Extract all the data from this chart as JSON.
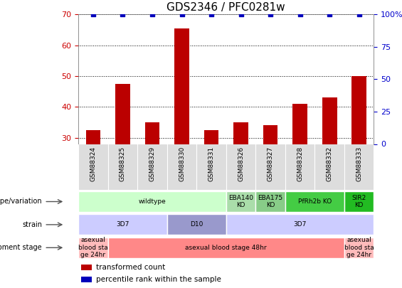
{
  "title": "GDS2346 / PFC0281w",
  "samples": [
    "GSM88324",
    "GSM88325",
    "GSM88329",
    "GSM88330",
    "GSM88331",
    "GSM88326",
    "GSM88327",
    "GSM88328",
    "GSM88332",
    "GSM88333"
  ],
  "bar_values": [
    32.5,
    47.5,
    35.0,
    65.5,
    32.5,
    35.0,
    34.0,
    41.0,
    43.0,
    50.0
  ],
  "dot_values_right": [
    100,
    100,
    100,
    100,
    100,
    100,
    100,
    100,
    100,
    100
  ],
  "ylim_left": [
    28,
    70
  ],
  "yticks_left": [
    30,
    40,
    50,
    60,
    70
  ],
  "ylim_right": [
    0,
    100
  ],
  "yticks_right": [
    0,
    25,
    50,
    75,
    100
  ],
  "bar_color": "#bb0000",
  "dot_color": "#0000bb",
  "tick_color_left": "#cc0000",
  "tick_color_right": "#0000cc",
  "genotype_segments": [
    {
      "text": "wildtype",
      "start": 0,
      "end": 5,
      "color": "#ccffcc"
    },
    {
      "text": "EBA140\nKO",
      "start": 5,
      "end": 6,
      "color": "#aaddaa"
    },
    {
      "text": "EBA175\nKO",
      "start": 6,
      "end": 7,
      "color": "#88cc88"
    },
    {
      "text": "PfRh2b KO",
      "start": 7,
      "end": 9,
      "color": "#44cc44"
    },
    {
      "text": "SIR2\nKO",
      "start": 9,
      "end": 10,
      "color": "#22bb22"
    }
  ],
  "strain_segments": [
    {
      "text": "3D7",
      "start": 0,
      "end": 3,
      "color": "#ccccff"
    },
    {
      "text": "D10",
      "start": 3,
      "end": 5,
      "color": "#9999cc"
    },
    {
      "text": "3D7",
      "start": 5,
      "end": 10,
      "color": "#ccccff"
    }
  ],
  "dev_segments": [
    {
      "text": "asexual\nblood sta\nge 24hr",
      "start": 0,
      "end": 1,
      "color": "#ffbbbb"
    },
    {
      "text": "asexual blood stage 48hr",
      "start": 1,
      "end": 9,
      "color": "#ff8888"
    },
    {
      "text": "asexual\nblood sta\nge 24hr",
      "start": 9,
      "end": 10,
      "color": "#ffbbbb"
    }
  ],
  "legend_items": [
    {
      "color": "#bb0000",
      "label": "transformed count"
    },
    {
      "color": "#0000bb",
      "label": "percentile rank within the sample"
    }
  ]
}
